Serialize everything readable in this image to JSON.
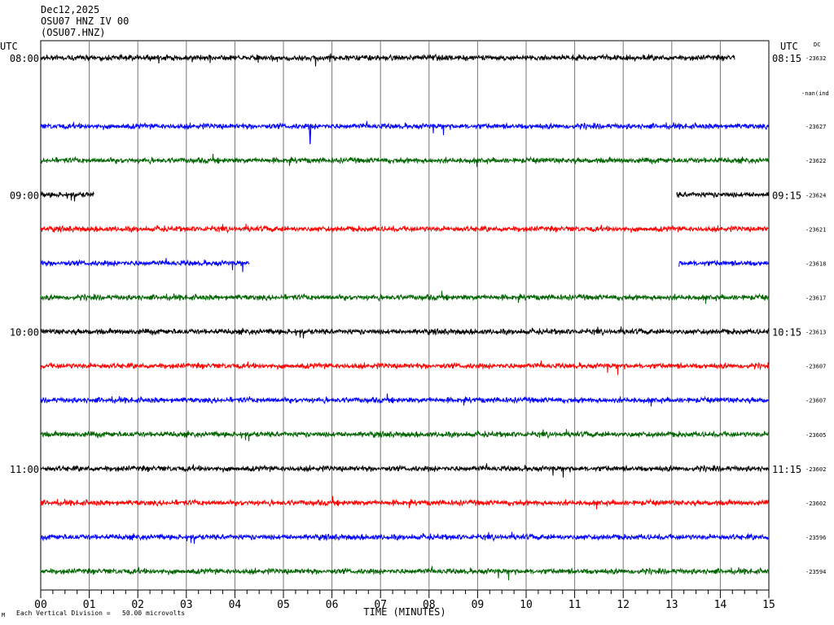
{
  "header": {
    "date": "Dec12,2025",
    "station": "OSU07 HNZ IV 00",
    "channel": "(OSU07.HNZ)"
  },
  "footer": {
    "vertical_division": "Each Vertical Division =   50.00 microvolts",
    "logo": "M"
  },
  "chart_data": {
    "type": "line",
    "title": "",
    "xlabel": "TIME (MINUTES)",
    "ylabel": "",
    "xlim": [
      0,
      15
    ],
    "x_ticks": [
      "00",
      "01",
      "02",
      "03",
      "04",
      "05",
      "06",
      "07",
      "08",
      "09",
      "10",
      "11",
      "12",
      "13",
      "14",
      "15"
    ],
    "left_axis_label": "UTC",
    "right_axis_label": "UTC",
    "dc_label": "DC",
    "trace_colors": [
      "#000000",
      "#ff0000",
      "#0000ff",
      "#006400"
    ],
    "nan_note": "-nan(ind",
    "traces": [
      {
        "color": "#000000",
        "left_time": "08:00",
        "right_time": "08:15",
        "dc": "-23632",
        "segments": [
          [
            0,
            14.3
          ]
        ]
      },
      {
        "color": "#ff0000",
        "left_time": "",
        "right_time": "",
        "dc": "",
        "segments": []
      },
      {
        "color": "#0000ff",
        "left_time": "",
        "right_time": "",
        "dc": "-23627",
        "segments": [
          [
            0,
            15
          ]
        ]
      },
      {
        "color": "#006400",
        "left_time": "",
        "right_time": "",
        "dc": "-23622",
        "segments": [
          [
            0,
            15
          ]
        ]
      },
      {
        "color": "#000000",
        "left_time": "09:00",
        "right_time": "09:15",
        "dc": "-23624",
        "segments": [
          [
            0,
            1.1
          ],
          [
            13.1,
            15
          ]
        ]
      },
      {
        "color": "#ff0000",
        "left_time": "",
        "right_time": "",
        "dc": "-23621",
        "segments": [
          [
            0,
            15
          ]
        ]
      },
      {
        "color": "#0000ff",
        "left_time": "",
        "right_time": "",
        "dc": "-23618",
        "segments": [
          [
            0,
            4.3
          ],
          [
            13.15,
            15
          ]
        ]
      },
      {
        "color": "#006400",
        "left_time": "",
        "right_time": "",
        "dc": "-23617",
        "segments": [
          [
            0,
            15
          ]
        ]
      },
      {
        "color": "#000000",
        "left_time": "10:00",
        "right_time": "10:15",
        "dc": "-23613",
        "segments": [
          [
            0,
            15
          ]
        ]
      },
      {
        "color": "#ff0000",
        "left_time": "",
        "right_time": "",
        "dc": "-23607",
        "segments": [
          [
            0,
            15
          ]
        ]
      },
      {
        "color": "#0000ff",
        "left_time": "",
        "right_time": "",
        "dc": "-23607",
        "segments": [
          [
            0,
            15
          ]
        ]
      },
      {
        "color": "#006400",
        "left_time": "",
        "right_time": "",
        "dc": "-23605",
        "segments": [
          [
            0,
            15
          ]
        ]
      },
      {
        "color": "#000000",
        "left_time": "11:00",
        "right_time": "11:15",
        "dc": "-23602",
        "segments": [
          [
            0,
            15
          ]
        ]
      },
      {
        "color": "#ff0000",
        "left_time": "",
        "right_time": "",
        "dc": "-23602",
        "segments": [
          [
            0,
            15
          ]
        ]
      },
      {
        "color": "#0000ff",
        "left_time": "",
        "right_time": "",
        "dc": "-23596",
        "segments": [
          [
            0,
            15
          ]
        ]
      },
      {
        "color": "#006400",
        "left_time": "",
        "right_time": "",
        "dc": "-23594",
        "segments": [
          [
            0,
            15
          ]
        ]
      }
    ],
    "events": [
      {
        "trace": 2,
        "minute": 5.55,
        "amplitude": 2.2
      }
    ]
  }
}
